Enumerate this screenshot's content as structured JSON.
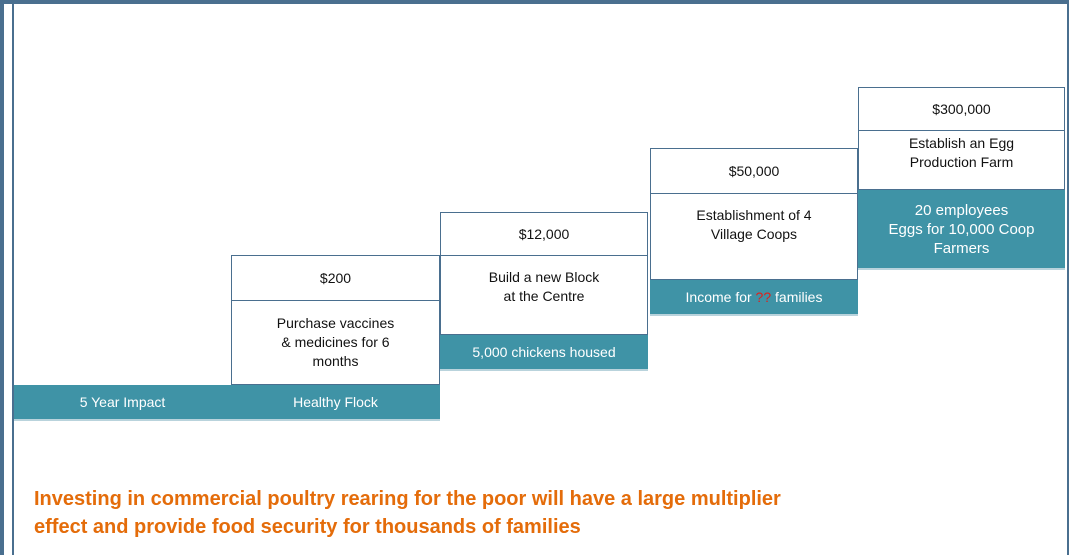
{
  "base": {
    "label": "5 Year Impact"
  },
  "steps": [
    {
      "amount": "$200",
      "description": [
        "Purchase vaccines",
        "& medicines for 6",
        "months"
      ],
      "impact": [
        "Healthy Flock"
      ]
    },
    {
      "amount": "$12,000",
      "description": [
        "Build a new Block",
        "at the Centre"
      ],
      "impact": [
        "5,000 chickens housed"
      ]
    },
    {
      "amount": "$50,000",
      "description": [
        "Establishment of 4",
        "Village Coops"
      ],
      "impact": [
        "Income for",
        "??",
        "families"
      ]
    },
    {
      "amount": "$300,000",
      "description": [
        "Establish an Egg",
        "Production Farm"
      ],
      "impact": [
        "20 employees",
        "Eggs for 10,000 Coop",
        "Farmers"
      ]
    }
  ],
  "footer": [
    "Investing in commercial poultry rearing for the poor will have a large multiplier",
    "effect and provide food security for thousands of families"
  ]
}
